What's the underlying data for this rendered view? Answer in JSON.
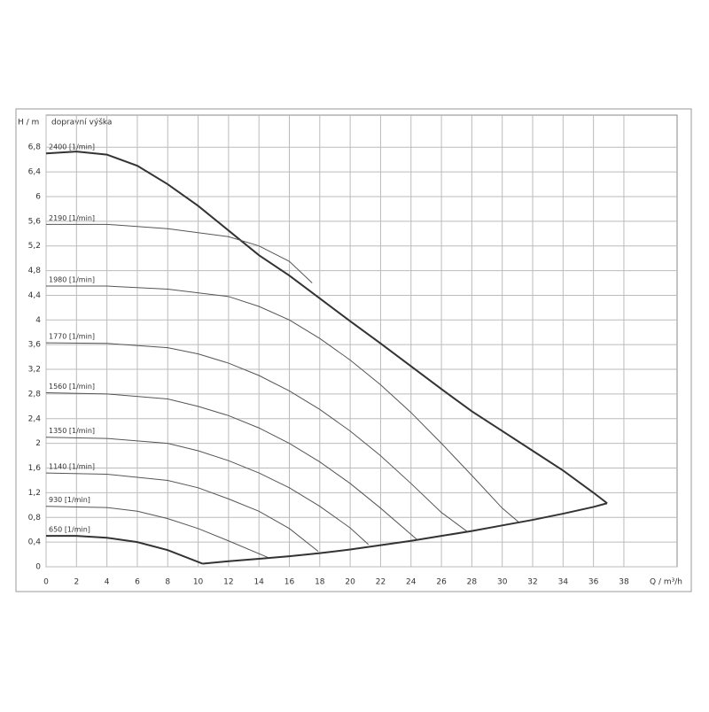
{
  "chart_data": {
    "type": "line",
    "ylabel": "H / m",
    "subtitle": "dopravní výška",
    "xlabel": "Q / m³/h",
    "xlim": [
      0,
      41.5
    ],
    "ylim": [
      0,
      7.32
    ],
    "xticks": [
      0,
      2,
      4,
      6,
      8,
      10,
      12,
      14,
      16,
      18,
      20,
      22,
      24,
      26,
      28,
      30,
      32,
      34,
      36,
      38
    ],
    "yticks": [
      0,
      {
        "value": 0.4,
        "label": "0,4"
      },
      {
        "value": 0.8,
        "label": "0,8"
      },
      {
        "value": 1.2,
        "label": "1,2"
      },
      {
        "value": 1.6,
        "label": "1,6"
      },
      2,
      {
        "value": 2.4,
        "label": "2,4"
      },
      {
        "value": 2.8,
        "label": "2,8"
      },
      {
        "value": 3.2,
        "label": "3,2"
      },
      {
        "value": 3.6,
        "label": "3,6"
      },
      4,
      {
        "value": 4.4,
        "label": "4,4"
      },
      {
        "value": 4.8,
        "label": "4,8"
      },
      {
        "value": 5.2,
        "label": "5,2"
      },
      {
        "value": 5.6,
        "label": "5,6"
      },
      6,
      {
        "value": 6.4,
        "label": "6,4"
      },
      {
        "value": 6.8,
        "label": "6,8"
      }
    ],
    "grid": true,
    "series": [
      {
        "name": "2400 [1/min]",
        "color": "#333333",
        "line_width": 2,
        "x": [
          0,
          2,
          4,
          6,
          8,
          10,
          12,
          14,
          16,
          18,
          20,
          22,
          24,
          26,
          28,
          30,
          32,
          34,
          36,
          36.9
        ],
        "values": [
          6.7,
          6.73,
          6.68,
          6.5,
          6.2,
          5.85,
          5.45,
          5.05,
          4.72,
          4.35,
          3.98,
          3.62,
          3.25,
          2.88,
          2.52,
          2.2,
          1.88,
          1.56,
          1.2,
          1.03
        ]
      },
      {
        "name": "2190 [1/min]",
        "color": "#555555",
        "line_width": 1,
        "x": [
          0,
          4,
          8,
          12,
          14,
          16,
          17.5
        ],
        "values": [
          5.55,
          5.55,
          5.48,
          5.35,
          5.2,
          4.95,
          4.6
        ]
      },
      {
        "name": "1980 [1/min]",
        "color": "#555555",
        "line_width": 1,
        "x": [
          0,
          4,
          8,
          12,
          14,
          16,
          18,
          20,
          22,
          24,
          26,
          28,
          30,
          31.1
        ],
        "values": [
          4.55,
          4.55,
          4.5,
          4.38,
          4.22,
          4.0,
          3.7,
          3.35,
          2.95,
          2.5,
          2.0,
          1.48,
          0.95,
          0.72
        ]
      },
      {
        "name": "1770 [1/min]",
        "color": "#555555",
        "line_width": 1,
        "x": [
          0,
          4,
          8,
          10,
          12,
          14,
          16,
          18,
          20,
          22,
          24,
          26,
          27.7
        ],
        "values": [
          3.63,
          3.62,
          3.55,
          3.45,
          3.3,
          3.1,
          2.85,
          2.55,
          2.2,
          1.8,
          1.35,
          0.88,
          0.57
        ]
      },
      {
        "name": "1560 [1/min]",
        "color": "#555555",
        "line_width": 1,
        "x": [
          0,
          4,
          8,
          10,
          12,
          14,
          16,
          18,
          20,
          22,
          24.4
        ],
        "values": [
          2.82,
          2.8,
          2.72,
          2.6,
          2.45,
          2.25,
          2.0,
          1.7,
          1.35,
          0.95,
          0.44
        ]
      },
      {
        "name": "1350 [1/min]",
        "color": "#555555",
        "line_width": 1,
        "x": [
          0,
          4,
          8,
          10,
          12,
          14,
          16,
          18,
          20,
          21.2
        ],
        "values": [
          2.1,
          2.08,
          2.0,
          1.88,
          1.72,
          1.52,
          1.28,
          0.98,
          0.63,
          0.36
        ]
      },
      {
        "name": "1140 [1/min]",
        "color": "#555555",
        "line_width": 1,
        "x": [
          0,
          4,
          8,
          10,
          12,
          14,
          16,
          17.9
        ],
        "values": [
          1.52,
          1.5,
          1.4,
          1.28,
          1.1,
          0.9,
          0.62,
          0.25
        ]
      },
      {
        "name": "930 [1/min]",
        "color": "#555555",
        "line_width": 1,
        "x": [
          0,
          4,
          6,
          8,
          10,
          12,
          14.6
        ],
        "values": [
          0.98,
          0.96,
          0.9,
          0.78,
          0.62,
          0.42,
          0.15
        ]
      },
      {
        "name": "650 [1/min]",
        "color": "#333333",
        "line_width": 2,
        "x": [
          0,
          2,
          4,
          6,
          8,
          10.3
        ],
        "values": [
          0.5,
          0.5,
          0.47,
          0.4,
          0.27,
          0.05
        ]
      },
      {
        "color": "#333333",
        "line_width": 2,
        "x": [
          10.3,
          12,
          14,
          16,
          18,
          20,
          22,
          24,
          26,
          28,
          30,
          32,
          34,
          36,
          36.9
        ],
        "values": [
          0.05,
          0.09,
          0.13,
          0.17,
          0.22,
          0.28,
          0.35,
          0.42,
          0.5,
          0.58,
          0.67,
          0.76,
          0.86,
          0.97,
          1.03
        ]
      }
    ]
  }
}
